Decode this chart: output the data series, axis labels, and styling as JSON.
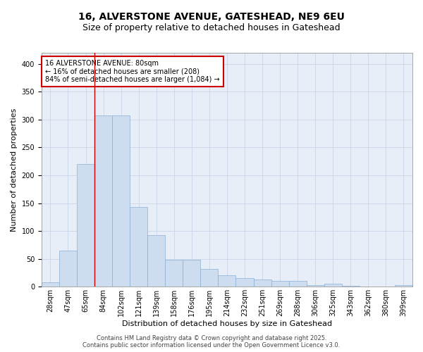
{
  "title_line1": "16, ALVERSTONE AVENUE, GATESHEAD, NE9 6EU",
  "title_line2": "Size of property relative to detached houses in Gateshead",
  "xlabel": "Distribution of detached houses by size in Gateshead",
  "ylabel": "Number of detached properties",
  "categories": [
    "28sqm",
    "47sqm",
    "65sqm",
    "84sqm",
    "102sqm",
    "121sqm",
    "139sqm",
    "158sqm",
    "176sqm",
    "195sqm",
    "214sqm",
    "232sqm",
    "251sqm",
    "269sqm",
    "288sqm",
    "306sqm",
    "325sqm",
    "343sqm",
    "362sqm",
    "380sqm",
    "399sqm"
  ],
  "values": [
    8,
    65,
    220,
    308,
    308,
    143,
    93,
    48,
    48,
    32,
    20,
    15,
    13,
    11,
    11,
    3,
    5,
    2,
    1,
    1,
    3
  ],
  "bar_color": "#cddcef",
  "bar_edge_color": "#8aafd4",
  "grid_color": "#c8d4e8",
  "background_color": "#e8eef8",
  "vline_x_index": 3,
  "vline_color": "#cc0000",
  "annotation_text": "16 ALVERSTONE AVENUE: 80sqm\n← 16% of detached houses are smaller (208)\n84% of semi-detached houses are larger (1,084) →",
  "annotation_box_color": "#cc0000",
  "footer_line1": "Contains HM Land Registry data © Crown copyright and database right 2025.",
  "footer_line2": "Contains public sector information licensed under the Open Government Licence v3.0.",
  "ylim": [
    0,
    420
  ],
  "yticks": [
    0,
    50,
    100,
    150,
    200,
    250,
    300,
    350,
    400
  ],
  "title_fontsize": 10,
  "subtitle_fontsize": 9,
  "tick_fontsize": 7,
  "label_fontsize": 8,
  "annotation_fontsize": 7,
  "footer_fontsize": 6
}
